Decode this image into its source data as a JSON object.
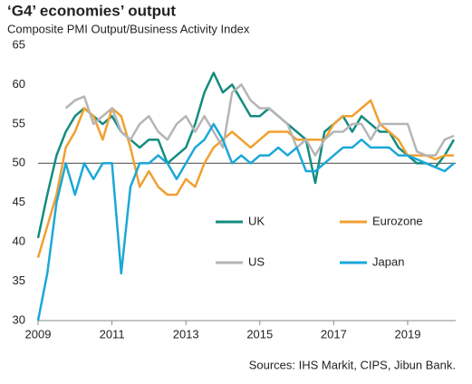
{
  "chart_data": {
    "type": "line",
    "title": "‘G4’ economies’ output",
    "subtitle": "Composite PMI Output/Business Activity Index",
    "source": "Sources: IHS Markit, CIPS, Jibun Bank.",
    "x": [
      2009,
      2009.25,
      2009.5,
      2009.75,
      2010,
      2010.25,
      2010.5,
      2010.75,
      2011,
      2011.25,
      2011.5,
      2011.75,
      2012,
      2012.25,
      2012.5,
      2012.75,
      2013,
      2013.25,
      2013.5,
      2013.75,
      2014,
      2014.25,
      2014.5,
      2014.75,
      2015,
      2015.25,
      2015.5,
      2015.75,
      2016,
      2016.25,
      2016.5,
      2016.75,
      2017,
      2017.25,
      2017.5,
      2017.75,
      2018,
      2018.25,
      2018.5,
      2018.75,
      2019,
      2019.25,
      2019.5,
      2019.75,
      2020,
      2020.25
    ],
    "series": [
      {
        "name": "UK",
        "color": "#138c7f",
        "values": [
          40.5,
          46,
          51,
          54,
          56,
          57,
          56,
          55,
          56,
          54,
          53,
          52,
          53,
          53,
          50,
          51,
          52,
          55,
          59,
          61.5,
          59,
          60,
          58,
          56,
          56,
          57,
          56,
          55,
          54,
          53,
          47.5,
          54,
          55,
          56,
          54,
          56,
          55,
          54,
          54,
          52,
          51,
          50,
          50,
          49.5,
          51,
          53
        ]
      },
      {
        "name": "Eurozone",
        "color": "#f0a030",
        "values": [
          38,
          42,
          46,
          52,
          54,
          57,
          56,
          53,
          57,
          56,
          52,
          47,
          49,
          47,
          46,
          46,
          48,
          47,
          50,
          52,
          53,
          54,
          53,
          52,
          53,
          54,
          54,
          54,
          53,
          53,
          53,
          53,
          55,
          56,
          56,
          57,
          58,
          55,
          54,
          53,
          51,
          51,
          51,
          50.5,
          51,
          51
        ]
      },
      {
        "name": "US",
        "color": "#b5b5b5",
        "values": [
          null,
          null,
          null,
          57,
          58,
          58.5,
          55,
          56,
          57,
          54,
          53,
          55,
          56,
          54,
          53,
          55,
          56,
          54,
          56,
          54,
          52,
          59,
          60,
          58,
          57,
          57,
          56,
          55,
          52,
          53,
          51,
          53,
          54,
          54,
          55,
          55,
          53,
          55,
          55,
          55,
          55,
          51.5,
          51,
          51,
          53,
          53.5
        ]
      },
      {
        "name": "Japan",
        "color": "#1aa8d8",
        "values": [
          30,
          36,
          45,
          50,
          46,
          50,
          48,
          50,
          50,
          36,
          47,
          50,
          50,
          51,
          50,
          48,
          50,
          52,
          53,
          55,
          53,
          50,
          51,
          50,
          51,
          51,
          52,
          51,
          52,
          49,
          49,
          50,
          51,
          52,
          52,
          53,
          52,
          52,
          52,
          51,
          51,
          50.5,
          50,
          49.5,
          49,
          50
        ]
      }
    ],
    "xlim": [
      2009,
      2020.3
    ],
    "xticks": [
      2009,
      2011,
      2013,
      2015,
      2017,
      2019
    ],
    "ylim": [
      30,
      65
    ],
    "yticks": [
      30,
      35,
      40,
      45,
      50,
      55,
      60,
      65
    ],
    "hline": 50,
    "grid": false,
    "legend": "center"
  }
}
